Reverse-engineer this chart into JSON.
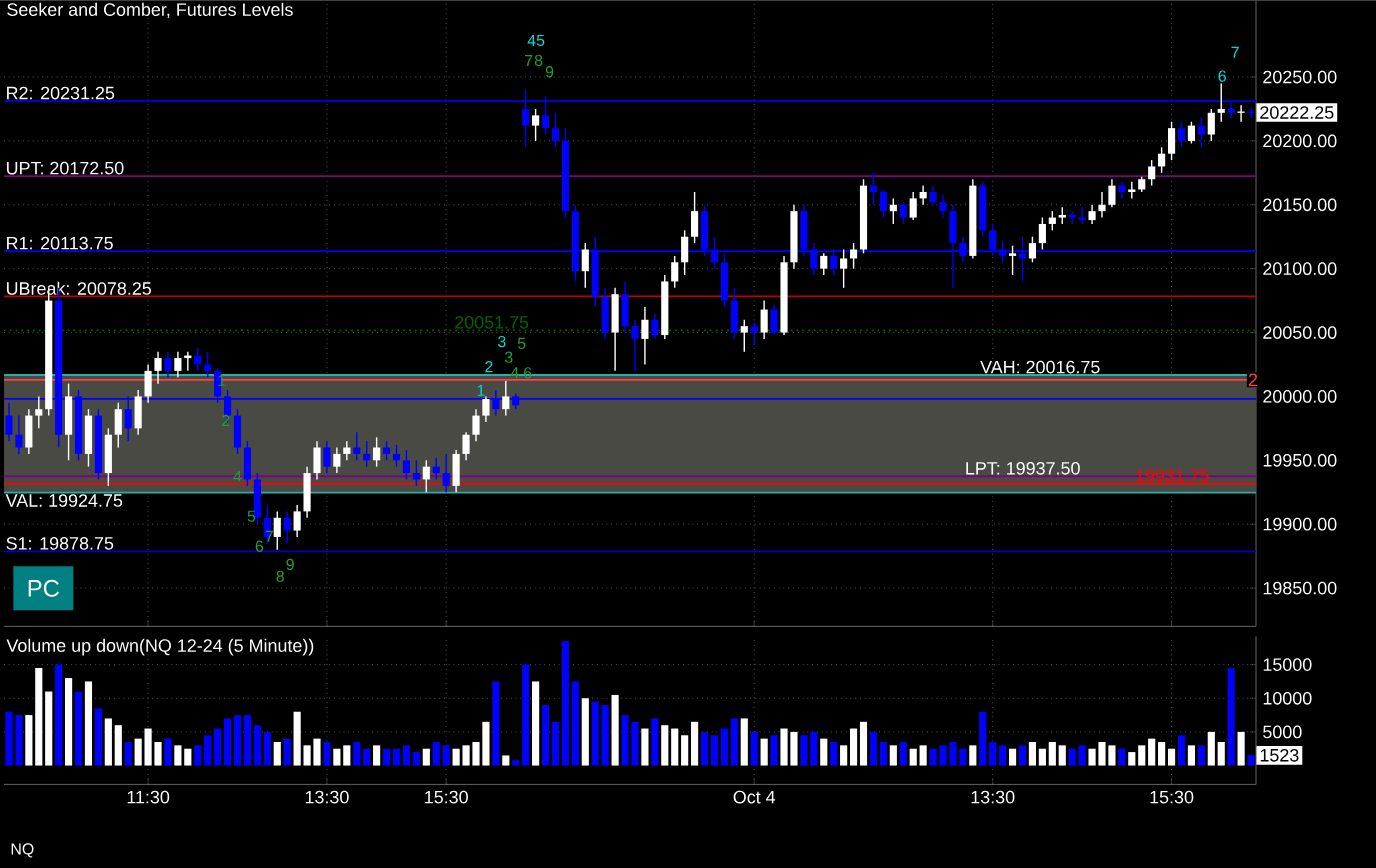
{
  "chart_data": [
    {
      "type": "candlestick",
      "title": "Seeker and Comber, Futures Levels",
      "categories": [
        null,
        null,
        null,
        null,
        null,
        null,
        null,
        null,
        null,
        null,
        null,
        null,
        null,
        null,
        null,
        null,
        null,
        null,
        null,
        null,
        null,
        null,
        null,
        null,
        null,
        null,
        null,
        null,
        null,
        null,
        null,
        null,
        null,
        null,
        null,
        null,
        null,
        null,
        null,
        null,
        null,
        null,
        null,
        null,
        null,
        null,
        null,
        null,
        null,
        null,
        null,
        null,
        null,
        null,
        null,
        null,
        null,
        null,
        null,
        null,
        null,
        null,
        null,
        null,
        null,
        null,
        null,
        null,
        null,
        null,
        null,
        null,
        null,
        null,
        null,
        null,
        null,
        null,
        null,
        null,
        null,
        null,
        null,
        null,
        null,
        null,
        null,
        null,
        null,
        null,
        null,
        null,
        null,
        null,
        null,
        null,
        null,
        null,
        null,
        null,
        null,
        null,
        null,
        null,
        null,
        null,
        null,
        null,
        null,
        null,
        null,
        null,
        null,
        null,
        null,
        null,
        null,
        null,
        null,
        null,
        null,
        null,
        null,
        null,
        null,
        null
      ],
      "ohlc": [
        [
          19985,
          19995,
          19965,
          19970
        ],
        [
          19970,
          19985,
          19955,
          19960
        ],
        [
          19960,
          19990,
          19955,
          19985
        ],
        [
          19985,
          20000,
          19975,
          19990
        ],
        [
          19990,
          20085,
          19985,
          20075
        ],
        [
          20075,
          20085,
          19960,
          19970
        ],
        [
          19970,
          20010,
          19950,
          20000
        ],
        [
          20000,
          20005,
          19950,
          19955
        ],
        [
          19955,
          19990,
          19945,
          19985
        ],
        [
          19985,
          19990,
          19935,
          19940
        ],
        [
          19940,
          19975,
          19930,
          19970
        ],
        [
          19970,
          19995,
          19960,
          19990
        ],
        [
          19990,
          20000,
          19965,
          19975
        ],
        [
          19975,
          20005,
          19970,
          20000
        ],
        [
          20000,
          20025,
          19995,
          20020
        ],
        [
          20020,
          20035,
          20010,
          20030
        ],
        [
          20030,
          20035,
          20015,
          20020
        ],
        [
          20020,
          20035,
          20015,
          20030
        ],
        [
          20030,
          20035,
          20020,
          20032
        ],
        [
          20032,
          20038,
          20020,
          20025
        ],
        [
          20025,
          20035,
          20015,
          20020
        ],
        [
          20020,
          20022,
          19995,
          20000
        ],
        [
          20000,
          20005,
          19980,
          19985
        ],
        [
          19985,
          19990,
          19955,
          19960
        ],
        [
          19960,
          19965,
          19930,
          19935
        ],
        [
          19935,
          19940,
          19900,
          19905
        ],
        [
          19905,
          19915,
          19885,
          19890
        ],
        [
          19890,
          19910,
          19880,
          19905
        ],
        [
          19905,
          19910,
          19885,
          19895
        ],
        [
          19895,
          19915,
          19890,
          19910
        ],
        [
          19910,
          19945,
          19905,
          19940
        ],
        [
          19940,
          19965,
          19935,
          19960
        ],
        [
          19960,
          19965,
          19940,
          19945
        ],
        [
          19945,
          19960,
          19940,
          19955
        ],
        [
          19955,
          19965,
          19950,
          19960
        ],
        [
          19960,
          19972,
          19950,
          19955
        ],
        [
          19955,
          19965,
          19945,
          19950
        ],
        [
          19950,
          19968,
          19945,
          19960
        ],
        [
          19960,
          19965,
          19950,
          19955
        ],
        [
          19955,
          19962,
          19945,
          19950
        ],
        [
          19950,
          19958,
          19935,
          19940
        ],
        [
          19940,
          19950,
          19930,
          19935
        ],
        [
          19935,
          19950,
          19925,
          19945
        ],
        [
          19945,
          19952,
          19935,
          19940
        ],
        [
          19940,
          19955,
          19925,
          19930
        ],
        [
          19930,
          19958,
          19925,
          19955
        ],
        [
          19955,
          19972,
          19950,
          19970
        ],
        [
          19970,
          19990,
          19965,
          19985
        ],
        [
          19985,
          20000,
          19980,
          19998
        ],
        [
          19998,
          20005,
          19985,
          19990
        ],
        [
          19990,
          20012,
          19985,
          20000
        ],
        [
          20000,
          20002,
          19990,
          19993
        ],
        [
          20225,
          20240,
          20195,
          20212
        ],
        [
          20212,
          20225,
          20200,
          20220
        ],
        [
          20220,
          20235,
          20205,
          20210
        ],
        [
          20210,
          20222,
          20195,
          20200
        ],
        [
          20200,
          20210,
          20140,
          20145
        ],
        [
          20145,
          20150,
          20090,
          20098
        ],
        [
          20098,
          20120,
          20085,
          20115
        ],
        [
          20115,
          20125,
          20070,
          20078
        ],
        [
          20078,
          20085,
          20045,
          20050
        ],
        [
          20050,
          20085,
          20020,
          20080
        ],
        [
          20080,
          20090,
          20050,
          20055
        ],
        [
          20055,
          20060,
          20020,
          20045
        ],
        [
          20045,
          20070,
          20025,
          20060
        ],
        [
          20060,
          20065,
          20045,
          20048
        ],
        [
          20048,
          20095,
          20045,
          20090
        ],
        [
          20090,
          20110,
          20085,
          20105
        ],
        [
          20105,
          20130,
          20095,
          20125
        ],
        [
          20125,
          20160,
          20120,
          20145
        ],
        [
          20145,
          20150,
          20110,
          20115
        ],
        [
          20115,
          20125,
          20100,
          20105
        ],
        [
          20105,
          20112,
          20070,
          20075
        ],
        [
          20075,
          20085,
          20045,
          20050
        ],
        [
          20050,
          20060,
          20035,
          20055
        ],
        [
          20055,
          20058,
          20040,
          20050
        ],
        [
          20050,
          20075,
          20045,
          20068
        ],
        [
          20068,
          20072,
          20048,
          20050
        ],
        [
          20050,
          20110,
          20048,
          20105
        ],
        [
          20105,
          20150,
          20100,
          20145
        ],
        [
          20145,
          20150,
          20110,
          20115
        ],
        [
          20115,
          20120,
          20095,
          20100
        ],
        [
          20100,
          20112,
          20095,
          20110
        ],
        [
          20110,
          20115,
          20095,
          20100
        ],
        [
          20100,
          20115,
          20085,
          20108
        ],
        [
          20108,
          20120,
          20100,
          20115
        ],
        [
          20115,
          20170,
          20112,
          20165
        ],
        [
          20165,
          20175,
          20150,
          20160
        ],
        [
          20160,
          20162,
          20140,
          20145
        ],
        [
          20145,
          20155,
          20135,
          20150
        ],
        [
          20150,
          20152,
          20135,
          20140
        ],
        [
          20140,
          20160,
          20138,
          20155
        ],
        [
          20155,
          20165,
          20150,
          20160
        ],
        [
          20160,
          20165,
          20150,
          20152
        ],
        [
          20152,
          20158,
          20140,
          20145
        ],
        [
          20145,
          20150,
          20085,
          20120
        ],
        [
          20120,
          20125,
          20105,
          20110
        ],
        [
          20110,
          20170,
          20108,
          20165
        ],
        [
          20165,
          20168,
          20125,
          20130
        ],
        [
          20130,
          20135,
          20110,
          20115
        ],
        [
          20115,
          20122,
          20105,
          20110
        ],
        [
          20110,
          20118,
          20095,
          20112
        ],
        [
          20112,
          20125,
          20090,
          20108
        ],
        [
          20108,
          20125,
          20105,
          20120
        ],
        [
          20120,
          20140,
          20115,
          20135
        ],
        [
          20135,
          20145,
          20130,
          20140
        ],
        [
          20140,
          20148,
          20135,
          20142
        ],
        [
          20142,
          20145,
          20135,
          20140
        ],
        [
          20140,
          20148,
          20135,
          20138
        ],
        [
          20138,
          20150,
          20135,
          20145
        ],
        [
          20145,
          20160,
          20140,
          20150
        ],
        [
          20150,
          20170,
          20148,
          20165
        ],
        [
          20165,
          20168,
          20155,
          20160
        ],
        [
          20160,
          20168,
          20155,
          20162
        ],
        [
          20162,
          20172,
          20160,
          20170
        ],
        [
          20170,
          20185,
          20165,
          20180
        ],
        [
          20180,
          20195,
          20175,
          20190
        ],
        [
          20190,
          20215,
          20185,
          20210
        ],
        [
          20210,
          20215,
          20195,
          20200
        ],
        [
          20200,
          20215,
          20198,
          20212
        ],
        [
          20212,
          20218,
          20195,
          20205
        ],
        [
          20205,
          20225,
          20200,
          20222
        ],
        [
          20222,
          20245,
          20215,
          20225
        ],
        [
          20225,
          20230,
          20218,
          20222
        ],
        [
          20222,
          20228,
          20215,
          20223
        ],
        [
          20223,
          20226,
          20218,
          20222
        ]
      ],
      "colors": [
        "#0000ff",
        "#0000ff",
        "#ffffff",
        "#ffffff",
        "#ffffff",
        "#0000ff",
        "#ffffff",
        "#0000ff",
        "#ffffff",
        "#0000ff",
        "#ffffff",
        "#ffffff",
        "#0000ff",
        "#ffffff",
        "#ffffff",
        "#ffffff",
        "#0000ff",
        "#ffffff",
        "#ffffff",
        "#0000ff",
        "#0000ff",
        "#0000ff",
        "#0000ff",
        "#0000ff",
        "#0000ff",
        "#0000ff",
        "#0000ff",
        "#ffffff",
        "#0000ff",
        "#ffffff",
        "#ffffff",
        "#ffffff",
        "#0000ff",
        "#ffffff",
        "#ffffff",
        "#0000ff",
        "#0000ff",
        "#ffffff",
        "#0000ff",
        "#0000ff",
        "#0000ff",
        "#0000ff",
        "#ffffff",
        "#0000ff",
        "#0000ff",
        "#ffffff",
        "#ffffff",
        "#ffffff",
        "#ffffff",
        "#0000ff",
        "#ffffff",
        "#0000ff",
        "#0000ff",
        "#ffffff",
        "#0000ff",
        "#0000ff",
        "#0000ff",
        "#0000ff",
        "#ffffff",
        "#0000ff",
        "#0000ff",
        "#ffffff",
        "#0000ff",
        "#0000ff",
        "#ffffff",
        "#0000ff",
        "#ffffff",
        "#ffffff",
        "#ffffff",
        "#ffffff",
        "#0000ff",
        "#0000ff",
        "#0000ff",
        "#0000ff",
        "#ffffff",
        "#0000ff",
        "#ffffff",
        "#0000ff",
        "#ffffff",
        "#ffffff",
        "#0000ff",
        "#0000ff",
        "#ffffff",
        "#0000ff",
        "#ffffff",
        "#ffffff",
        "#ffffff",
        "#0000ff",
        "#0000ff",
        "#ffffff",
        "#0000ff",
        "#ffffff",
        "#ffffff",
        "#0000ff",
        "#0000ff",
        "#0000ff",
        "#0000ff",
        "#ffffff",
        "#0000ff",
        "#0000ff",
        "#0000ff",
        "#ffffff",
        "#0000ff",
        "#ffffff",
        "#ffffff",
        "#ffffff",
        "#ffffff",
        "#0000ff",
        "#0000ff",
        "#ffffff",
        "#ffffff",
        "#ffffff",
        "#0000ff",
        "#ffffff",
        "#ffffff",
        "#ffffff",
        "#ffffff",
        "#ffffff",
        "#0000ff",
        "#ffffff",
        "#0000ff",
        "#ffffff",
        "#ffffff",
        "#0000ff",
        "#ffffff",
        "#0000ff"
      ],
      "ylim": [
        19820,
        20310
      ],
      "yticks": [
        {
          "value": 19850,
          "label": "19850.00"
        },
        {
          "value": 19900,
          "label": "19900.00"
        },
        {
          "value": 19950,
          "label": "19950.00"
        },
        {
          "value": 20000,
          "label": "20000.00"
        },
        {
          "value": 20050,
          "label": "20050.00"
        },
        {
          "value": 20100,
          "label": "20100.00"
        },
        {
          "value": 20150,
          "label": "20150.00"
        },
        {
          "value": 20200,
          "label": "20200.00"
        },
        {
          "value": 20250,
          "label": "20250.00"
        }
      ],
      "tick_labels": "y",
      "grid": true,
      "bands": [
        {
          "axis": "y",
          "from": 19924.75,
          "to": 20016.75,
          "color": "#4a4a44"
        }
      ],
      "ref_lines": [
        {
          "axis": "y",
          "value": 20231.25,
          "label": "R2: 20231.25",
          "color": "#0000c8"
        },
        {
          "axis": "y",
          "value": 20172.5,
          "label": "UPT: 20172.50",
          "color": "#800080"
        },
        {
          "axis": "y",
          "value": 20113.75,
          "label": "R1: 20113.75",
          "color": "#0000ff"
        },
        {
          "axis": "y",
          "value": 20078.25,
          "label": "UBreak: 20078.25",
          "color": "#c00000"
        },
        {
          "axis": "y",
          "value": 20051.75,
          "label": "20051.75",
          "color": "#006400",
          "line_style": "dotted"
        },
        {
          "axis": "y",
          "value": 20016.75,
          "label": "VAH: 20016.75",
          "color": "#20b2aa"
        },
        {
          "axis": "y",
          "value": 20013,
          "color": "#ff4040"
        },
        {
          "axis": "y",
          "value": 19998,
          "color": "#0000ff"
        },
        {
          "axis": "y",
          "value": 19937.5,
          "label": "LPT: 19937.50",
          "color": "#800080"
        },
        {
          "axis": "y",
          "value": 19931.75,
          "label": "19931.75",
          "color": "#ff0000"
        },
        {
          "axis": "y",
          "value": 19924.75,
          "label": "VAL: 19924.75",
          "color": "#20b2aa"
        },
        {
          "axis": "y",
          "value": 19878.75,
          "label": "S1: 19878.75",
          "color": "#0000c8"
        }
      ],
      "annotations": [
        "20222.25",
        "1",
        "2",
        "4",
        "5",
        "6",
        "7",
        "8",
        "9",
        "1",
        "2",
        "3",
        "3",
        "4",
        "5",
        "6",
        "4",
        "5",
        "7",
        "8",
        "9",
        "6",
        "7",
        "2",
        "PC"
      ]
    },
    {
      "type": "bar",
      "title": "Volume up down(NQ 12-24 (5 Minute))",
      "categories": [
        null,
        null,
        null,
        null,
        null,
        null,
        null,
        null,
        null,
        null,
        null,
        null,
        null,
        null,
        "11:30",
        null,
        null,
        null,
        null,
        null,
        null,
        null,
        null,
        null,
        null,
        null,
        null,
        null,
        null,
        null,
        null,
        null,
        "13:30",
        null,
        null,
        null,
        null,
        null,
        null,
        null,
        null,
        null,
        null,
        null,
        "15:30",
        null,
        null,
        null,
        null,
        null,
        null,
        null,
        null,
        null,
        null,
        null,
        null,
        null,
        null,
        null,
        null,
        null,
        null,
        null,
        null,
        null,
        null,
        null,
        null,
        null,
        null,
        null,
        null,
        null,
        null,
        "Oct 4",
        null,
        null,
        null,
        null,
        null,
        null,
        null,
        null,
        null,
        null,
        null,
        null,
        null,
        null,
        null,
        null,
        null,
        null,
        null,
        null,
        null,
        null,
        null,
        "13:30",
        null,
        null,
        null,
        null,
        null,
        null,
        null,
        null,
        null,
        null,
        null,
        null,
        null,
        null,
        null,
        null,
        null,
        "15:30",
        null,
        null,
        null,
        null,
        null,
        null,
        null,
        null
      ],
      "values": [
        8000,
        7500,
        7500,
        14500,
        11000,
        15000,
        13000,
        11000,
        12500,
        8500,
        7000,
        6000,
        3500,
        4000,
        5500,
        3500,
        4000,
        3000,
        2500,
        3000,
        4500,
        5500,
        7000,
        7500,
        7500,
        6000,
        5000,
        3500,
        4000,
        8000,
        3000,
        4000,
        3500,
        2500,
        3000,
        3500,
        2500,
        3000,
        2500,
        2500,
        3000,
        2000,
        2500,
        3500,
        3000,
        2500,
        3000,
        3500,
        6500,
        12500,
        1500,
        800,
        15000,
        12500,
        9000,
        6500,
        18500,
        12500,
        10000,
        9500,
        9000,
        10500,
        7500,
        6500,
        5500,
        7000,
        6000,
        5500,
        4500,
        6500,
        5000,
        4500,
        5500,
        7000,
        7000,
        5000,
        4000,
        4500,
        5500,
        5000,
        4500,
        5000,
        4000,
        3500,
        3000,
        5500,
        6500,
        5000,
        3500,
        3000,
        3500,
        2500,
        3000,
        2500,
        3000,
        3500,
        2500,
        3000,
        8000,
        3500,
        3000,
        2500,
        3000,
        3500,
        2500,
        3500,
        3000,
        2500,
        3000,
        2500,
        3500,
        3000,
        2500,
        2000,
        3000,
        4000,
        3500,
        2500,
        4500,
        3000,
        3000,
        5000,
        3500,
        14500,
        5000,
        1523
      ],
      "colors": [
        "#0000ff",
        "#0000ff",
        "#ffffff",
        "#ffffff",
        "#ffffff",
        "#0000ff",
        "#ffffff",
        "#0000ff",
        "#ffffff",
        "#0000ff",
        "#ffffff",
        "#ffffff",
        "#0000ff",
        "#ffffff",
        "#ffffff",
        "#ffffff",
        "#0000ff",
        "#ffffff",
        "#ffffff",
        "#0000ff",
        "#0000ff",
        "#0000ff",
        "#0000ff",
        "#0000ff",
        "#0000ff",
        "#0000ff",
        "#0000ff",
        "#ffffff",
        "#0000ff",
        "#ffffff",
        "#ffffff",
        "#ffffff",
        "#0000ff",
        "#ffffff",
        "#ffffff",
        "#0000ff",
        "#0000ff",
        "#ffffff",
        "#0000ff",
        "#0000ff",
        "#0000ff",
        "#0000ff",
        "#ffffff",
        "#0000ff",
        "#0000ff",
        "#ffffff",
        "#ffffff",
        "#ffffff",
        "#ffffff",
        "#0000ff",
        "#ffffff",
        "#0000ff",
        "#0000ff",
        "#ffffff",
        "#0000ff",
        "#0000ff",
        "#0000ff",
        "#0000ff",
        "#ffffff",
        "#0000ff",
        "#0000ff",
        "#ffffff",
        "#0000ff",
        "#0000ff",
        "#ffffff",
        "#0000ff",
        "#ffffff",
        "#ffffff",
        "#ffffff",
        "#ffffff",
        "#0000ff",
        "#0000ff",
        "#0000ff",
        "#0000ff",
        "#ffffff",
        "#0000ff",
        "#ffffff",
        "#0000ff",
        "#ffffff",
        "#ffffff",
        "#0000ff",
        "#0000ff",
        "#ffffff",
        "#0000ff",
        "#ffffff",
        "#ffffff",
        "#ffffff",
        "#0000ff",
        "#0000ff",
        "#ffffff",
        "#0000ff",
        "#ffffff",
        "#ffffff",
        "#0000ff",
        "#0000ff",
        "#0000ff",
        "#0000ff",
        "#ffffff",
        "#0000ff",
        "#0000ff",
        "#0000ff",
        "#ffffff",
        "#0000ff",
        "#ffffff",
        "#ffffff",
        "#ffffff",
        "#ffffff",
        "#0000ff",
        "#0000ff",
        "#ffffff",
        "#ffffff",
        "#ffffff",
        "#0000ff",
        "#ffffff",
        "#ffffff",
        "#ffffff",
        "#ffffff",
        "#ffffff",
        "#0000ff",
        "#ffffff",
        "#0000ff",
        "#ffffff",
        "#ffffff",
        "#0000ff",
        "#ffffff",
        "#0000ff"
      ],
      "ylim": [
        -2800,
        19200
      ],
      "yticks": [
        5000,
        10000,
        15000
      ],
      "grid": true,
      "annotations": [
        {
          "text": "1523",
          "y": 1523
        },
        "NQ"
      ]
    }
  ]
}
